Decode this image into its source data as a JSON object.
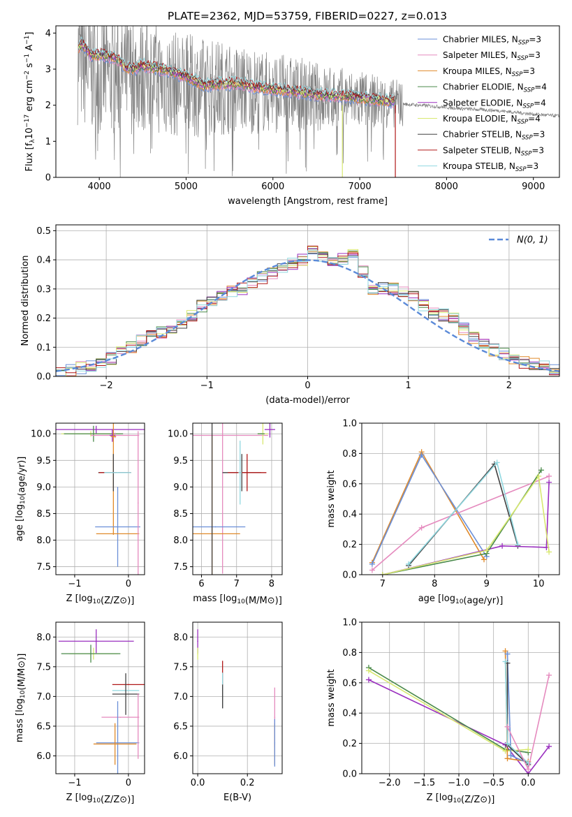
{
  "figure": {
    "title": "PLATE=2362, MJD=53759, FIBERID=0227, z=0.013"
  },
  "model_colors": {
    "Chabrier MILES": "#6a8fd8",
    "Salpeter MILES": "#e58abe",
    "Kroupa MILES": "#e08a2a",
    "Chabrier ELODIE": "#4a8a4a",
    "Salpeter ELODIE": "#9a2fbf",
    "Kroupa ELODIE": "#d8e870",
    "Chabrier STELIB": "#404040",
    "Salpeter STELIB": "#b01818",
    "Kroupa STELIB": "#90d8e0"
  },
  "chart_data": [
    {
      "id": "spectrum",
      "type": "line",
      "xlabel": "wavelength [Angstrom, rest frame]",
      "ylabel": "Flux [f_λ 10^-17 erg cm^-2 s^-1 A^-1]",
      "ylabel_parts": {
        "pre": "Flux [f",
        "sub1": "λ",
        "mid": "10",
        "sup1": "−17",
        "post1": " erg cm",
        "sup2": "−2",
        "post2": " s",
        "sup3": "−1",
        "post3": " A",
        "sup4": "−1",
        "end": "]"
      },
      "xlim": [
        3500,
        9300
      ],
      "ylim": [
        0,
        4.2
      ],
      "xticks": [
        4000,
        5000,
        6000,
        7000,
        8000,
        9000
      ],
      "yticks": [
        0,
        1,
        2,
        3,
        4
      ],
      "grid": false,
      "legend_position": "top-right",
      "legend": [
        {
          "name": "Chabrier MILES",
          "nssp": "3"
        },
        {
          "name": "Salpeter MILES",
          "nssp": "3"
        },
        {
          "name": "Kroupa MILES",
          "nssp": "3"
        },
        {
          "name": "Chabrier ELODIE",
          "nssp": "4"
        },
        {
          "name": "Salpeter ELODIE",
          "nssp": "4"
        },
        {
          "name": "Kroupa ELODIE",
          "nssp": "4"
        },
        {
          "name": "Chabrier STELIB",
          "nssp": "3"
        },
        {
          "name": "Salpeter STELIB",
          "nssp": "3"
        },
        {
          "name": "Kroupa STELIB",
          "nssp": "3"
        }
      ],
      "nssp_prefix": "N",
      "nssp_sub": "SSP",
      "data_color": "#808080",
      "data_envelope": [
        [
          3750,
          3.3
        ],
        [
          3900,
          3.0
        ],
        [
          4000,
          2.9
        ],
        [
          4200,
          2.8
        ],
        [
          4400,
          2.85
        ],
        [
          4600,
          2.8
        ],
        [
          4800,
          2.6
        ],
        [
          5000,
          2.55
        ],
        [
          5200,
          2.5
        ],
        [
          5400,
          2.5
        ],
        [
          5600,
          2.45
        ],
        [
          5800,
          2.4
        ],
        [
          6000,
          2.35
        ],
        [
          6300,
          2.3
        ],
        [
          6600,
          2.2
        ],
        [
          7000,
          2.15
        ],
        [
          7400,
          2.05
        ],
        [
          7800,
          1.98
        ],
        [
          8200,
          1.9
        ],
        [
          8600,
          1.85
        ],
        [
          9000,
          1.75
        ],
        [
          9300,
          1.7
        ]
      ],
      "models_median": [
        [
          3750,
          3.55
        ],
        [
          3800,
          3.7
        ],
        [
          3900,
          3.4
        ],
        [
          4000,
          3.4
        ],
        [
          4100,
          3.35
        ],
        [
          4200,
          3.3
        ],
        [
          4300,
          3.05
        ],
        [
          4400,
          3.0
        ],
        [
          4500,
          3.1
        ],
        [
          4600,
          3.05
        ],
        [
          4800,
          2.95
        ],
        [
          5000,
          2.8
        ],
        [
          5200,
          2.55
        ],
        [
          5400,
          2.6
        ],
        [
          5600,
          2.6
        ],
        [
          5800,
          2.5
        ],
        [
          6000,
          2.45
        ],
        [
          6200,
          2.4
        ],
        [
          6500,
          2.3
        ],
        [
          6800,
          2.25
        ],
        [
          7000,
          2.2
        ],
        [
          7200,
          2.15
        ],
        [
          7400,
          2.1
        ]
      ]
    },
    {
      "id": "residuals",
      "type": "histogram",
      "xlabel": "(data-model)/error",
      "ylabel": "Normed distribution",
      "xlim": [
        -2.5,
        2.5
      ],
      "ylim": [
        0,
        0.52
      ],
      "xticks": [
        -2,
        -1,
        0,
        1,
        2
      ],
      "yticks": [
        0.0,
        0.1,
        0.2,
        0.3,
        0.4,
        0.5
      ],
      "grid": true,
      "legend_position": "top-right",
      "reference_curve": {
        "label": "N(0, 1)",
        "color": "#5b8ad8",
        "style": "dashed",
        "mean": 0,
        "sigma": 1
      },
      "bin_width": 0.1,
      "histogram_envelope": [
        [
          -2.45,
          0.01
        ],
        [
          -2.25,
          0.03
        ],
        [
          -2.05,
          0.04
        ],
        [
          -1.85,
          0.08
        ],
        [
          -1.65,
          0.12
        ],
        [
          -1.45,
          0.15
        ],
        [
          -1.25,
          0.18
        ],
        [
          -1.05,
          0.24
        ],
        [
          -0.85,
          0.28
        ],
        [
          -0.65,
          0.3
        ],
        [
          -0.45,
          0.34
        ],
        [
          -0.25,
          0.37
        ],
        [
          -0.05,
          0.4
        ],
        [
          0.05,
          0.43
        ],
        [
          0.25,
          0.39
        ],
        [
          0.45,
          0.42
        ],
        [
          0.65,
          0.3
        ],
        [
          0.85,
          0.3
        ],
        [
          1.05,
          0.27
        ],
        [
          1.25,
          0.22
        ],
        [
          1.45,
          0.2
        ],
        [
          1.65,
          0.13
        ],
        [
          1.85,
          0.09
        ],
        [
          2.05,
          0.06
        ],
        [
          2.25,
          0.04
        ],
        [
          2.45,
          0.025
        ]
      ]
    },
    {
      "id": "age_vs_Z",
      "type": "errorbar",
      "xlabel": "Z [log10(Z/Z⊙)]",
      "ylabel": "age [log10(age/yr)]",
      "xlim": [
        -1.35,
        0.3
      ],
      "ylim": [
        7.35,
        10.2
      ],
      "xticks": [
        -1,
        0
      ],
      "yticks": [
        7.5,
        8.0,
        8.5,
        9.0,
        9.5,
        10.0
      ],
      "grid": true,
      "points": [
        {
          "model": "Salpeter ELODIE",
          "x": -0.6,
          "y": 10.08,
          "xerr": 0.9,
          "yerr": 0.07
        },
        {
          "model": "Kroupa ELODIE",
          "x": -0.7,
          "y": 10.0,
          "xerr": 0.55,
          "yerr": 0.05
        },
        {
          "model": "Chabrier ELODIE",
          "x": -0.65,
          "y": 10.0,
          "xerr": 0.55,
          "yerr": 0.15
        },
        {
          "model": "Salpeter MILES",
          "x": -0.25,
          "y": 9.97,
          "xerr": 0.45,
          "yerr": 0.05
        },
        {
          "model": "Salpeter ELODIE",
          "x": -0.3,
          "y": 9.97,
          "xerr": 0.05,
          "yerr": 0.12
        },
        {
          "model": "Kroupa MILES",
          "x": -0.28,
          "y": 9.95,
          "xerr": 0.05,
          "yerr": 1.85
        },
        {
          "model": "Chabrier STELIB",
          "x": -0.28,
          "y": 9.27,
          "xerr": 0.28,
          "yerr": 0.35
        },
        {
          "model": "Salpeter STELIB",
          "x": -0.25,
          "y": 9.27,
          "xerr": 0.3,
          "yerr": 0.0
        },
        {
          "model": "Kroupa STELIB",
          "x": -0.2,
          "y": 9.27,
          "xerr": 0.25,
          "yerr": 0.0
        },
        {
          "model": "Chabrier MILES",
          "x": -0.2,
          "y": 8.25,
          "xerr": 0.42,
          "yerr": 0.75
        },
        {
          "model": "Kroupa MILES",
          "x": -0.2,
          "y": 8.12,
          "xerr": 0.4,
          "yerr": 0.0
        },
        {
          "model": "Salpeter MILES",
          "x": 0.18,
          "y": 8.7,
          "xerr": 0.0,
          "yerr": 1.35
        }
      ]
    },
    {
      "id": "age_vs_mass",
      "type": "errorbar",
      "xlabel": "mass [log10(M/M⊙)]",
      "ylabel": "",
      "xlim": [
        5.75,
        8.3
      ],
      "ylim": [
        7.35,
        10.2
      ],
      "xticks": [
        6,
        7,
        8
      ],
      "yticks": [
        7.5,
        8.0,
        8.5,
        9.0,
        9.5,
        10.0
      ],
      "grid": true,
      "points": [
        {
          "model": "Salpeter MILES",
          "x": 6.6,
          "y": 9.97,
          "xerr": 1.3,
          "yerr": 2.6
        },
        {
          "model": "Kroupa MILES",
          "x": 6.3,
          "y": 8.12,
          "xerr": 0.8,
          "yerr": 1.85
        },
        {
          "model": "Chabrier MILES",
          "x": 6.4,
          "y": 8.25,
          "xerr": 0.85,
          "yerr": 0.0
        },
        {
          "model": "Chabrier STELIB",
          "x": 6.3,
          "y": 9.5,
          "xerr": 0.0,
          "yerr": 2.3
        },
        {
          "model": "Chabrier STELIB",
          "x": 7.15,
          "y": 9.27,
          "xerr": 0.55,
          "yerr": 0.35
        },
        {
          "model": "Salpeter STELIB",
          "x": 7.3,
          "y": 9.27,
          "xerr": 0.55,
          "yerr": 0.35
        },
        {
          "model": "Kroupa STELIB",
          "x": 7.1,
          "y": 9.27,
          "xerr": 0.05,
          "yerr": 0.6
        },
        {
          "model": "Kroupa ELODIE",
          "x": 7.75,
          "y": 10.0,
          "xerr": 0.15,
          "yerr": 0.2
        },
        {
          "model": "Chabrier ELODIE",
          "x": 7.7,
          "y": 10.0,
          "xerr": 0.1,
          "yerr": 0.0
        },
        {
          "model": "Salpeter ELODIE",
          "x": 7.95,
          "y": 10.08,
          "xerr": 0.15,
          "yerr": 0.15
        }
      ]
    },
    {
      "id": "massweight_vs_age",
      "type": "line",
      "xlabel": "age [log10(age/yr)]",
      "ylabel": "mass weight",
      "xlim": [
        6.6,
        10.4
      ],
      "ylim": [
        0,
        1.0
      ],
      "xticks": [
        7,
        8,
        9,
        10
      ],
      "yticks": [
        0.0,
        0.2,
        0.4,
        0.6,
        0.8,
        1.0
      ],
      "grid": true,
      "series": [
        {
          "model": "Kroupa MILES",
          "x": [
            6.8,
            7.75,
            8.95
          ],
          "y": [
            0.08,
            0.81,
            0.1
          ]
        },
        {
          "model": "Chabrier MILES",
          "x": [
            6.8,
            7.75,
            9.0
          ],
          "y": [
            0.07,
            0.79,
            0.12
          ]
        },
        {
          "model": "Salpeter MILES",
          "x": [
            6.8,
            7.75,
            10.2
          ],
          "y": [
            0.03,
            0.31,
            0.65
          ]
        },
        {
          "model": "Chabrier STELIB",
          "x": [
            7.5,
            9.15,
            9.6
          ],
          "y": [
            0.06,
            0.73,
            0.19
          ]
        },
        {
          "model": "Kroupa STELIB",
          "x": [
            7.5,
            9.2,
            9.6
          ],
          "y": [
            0.07,
            0.74,
            0.2
          ]
        },
        {
          "model": "Salpeter ELODIE",
          "x": [
            7.0,
            9.3,
            10.15,
            10.2
          ],
          "y": [
            0.0,
            0.19,
            0.18,
            0.61
          ]
        },
        {
          "model": "Chabrier ELODIE",
          "x": [
            7.0,
            9.0,
            10.05
          ],
          "y": [
            0.0,
            0.14,
            0.69
          ]
        },
        {
          "model": "Kroupa ELODIE",
          "x": [
            7.0,
            9.0,
            10.0,
            10.2
          ],
          "y": [
            0.0,
            0.16,
            0.65,
            0.15
          ]
        }
      ]
    },
    {
      "id": "mass_vs_Z",
      "type": "errorbar",
      "xlabel": "Z [log10(Z/Z⊙)]",
      "ylabel": "mass [log10(M/M⊙)]",
      "xlim": [
        -1.35,
        0.3
      ],
      "ylim": [
        5.7,
        8.25
      ],
      "xticks": [
        -1,
        0
      ],
      "yticks": [
        6.0,
        6.5,
        7.0,
        7.5,
        8.0
      ],
      "grid": true,
      "points": [
        {
          "model": "Salpeter ELODIE",
          "x": -0.6,
          "y": 7.93,
          "xerr": 0.7,
          "yerr": 0.2
        },
        {
          "model": "Kroupa ELODIE",
          "x": -0.65,
          "y": 7.72,
          "xerr": 0.45,
          "yerr": 0.1
        },
        {
          "model": "Chabrier ELODIE",
          "x": -0.7,
          "y": 7.72,
          "xerr": 0.55,
          "yerr": 0.15
        },
        {
          "model": "Salpeter STELIB",
          "x": 0.0,
          "y": 7.2,
          "xerr": 0.3,
          "yerr": 0.0
        },
        {
          "model": "Kroupa STELIB",
          "x": -0.05,
          "y": 7.1,
          "xerr": 0.25,
          "yerr": 0.0
        },
        {
          "model": "Chabrier STELIB",
          "x": -0.05,
          "y": 7.04,
          "xerr": 0.25,
          "yerr": 0.35
        },
        {
          "model": "Salpeter MILES",
          "x": -0.15,
          "y": 6.65,
          "xerr": 0.35,
          "yerr": 0.0
        },
        {
          "model": "Chabrier MILES",
          "x": -0.2,
          "y": 6.22,
          "xerr": 0.4,
          "yerr": 0.7
        },
        {
          "model": "Kroupa MILES",
          "x": -0.25,
          "y": 6.2,
          "xerr": 0.4,
          "yerr": 0.35
        },
        {
          "model": "Salpeter MILES",
          "x": 0.18,
          "y": 6.5,
          "xerr": 0.0,
          "yerr": 0.55
        }
      ]
    },
    {
      "id": "mass_vs_EBV",
      "type": "errorbar",
      "xlabel": "E(B-V)",
      "ylabel": "",
      "xlim": [
        -0.02,
        0.34
      ],
      "ylim": [
        5.7,
        8.25
      ],
      "xticks": [
        0.0,
        0.2
      ],
      "yticks": [
        6.0,
        6.5,
        7.0,
        7.5,
        8.0
      ],
      "grid": true,
      "points": [
        {
          "model": "Salpeter ELODIE",
          "x": 0.0,
          "y": 7.93,
          "xerr": 0.0,
          "yerr": 0.2
        },
        {
          "model": "Kroupa ELODIE",
          "x": 0.0,
          "y": 7.72,
          "xerr": 0.0,
          "yerr": 0.1
        },
        {
          "model": "Salpeter STELIB",
          "x": 0.1,
          "y": 7.2,
          "xerr": 0.0,
          "yerr": 0.4
        },
        {
          "model": "Kroupa STELIB",
          "x": 0.1,
          "y": 7.1,
          "xerr": 0.0,
          "yerr": 0.3
        },
        {
          "model": "Chabrier STELIB",
          "x": 0.1,
          "y": 7.0,
          "xerr": 0.0,
          "yerr": 0.2
        },
        {
          "model": "Salpeter MILES",
          "x": 0.31,
          "y": 6.65,
          "xerr": 0.0,
          "yerr": 0.5
        },
        {
          "model": "Kroupa MILES",
          "x": 0.31,
          "y": 6.2,
          "xerr": 0.0,
          "yerr": 0.35
        },
        {
          "model": "Chabrier MILES",
          "x": 0.31,
          "y": 6.22,
          "xerr": 0.0,
          "yerr": 0.4
        }
      ]
    },
    {
      "id": "massweight_vs_Z",
      "type": "line",
      "xlabel": "Z [log10(Z/Z⊙)]",
      "ylabel": "mass weight",
      "xlim": [
        -2.4,
        0.45
      ],
      "ylim": [
        0,
        1.0
      ],
      "xticks": [
        -2.0,
        -1.5,
        -1.0,
        -0.5,
        0.0
      ],
      "yticks": [
        0.0,
        0.2,
        0.4,
        0.6,
        0.8,
        1.0
      ],
      "grid": true,
      "series": [
        {
          "model": "Salpeter ELODIE",
          "x": [
            -2.3,
            -0.33,
            0.0,
            0.3
          ],
          "y": [
            0.62,
            0.19,
            0.0,
            0.18
          ]
        },
        {
          "model": "Chabrier ELODIE",
          "x": [
            -2.3,
            -0.33,
            0.0
          ],
          "y": [
            0.7,
            0.16,
            0.14
          ]
        },
        {
          "model": "Kroupa ELODIE",
          "x": [
            -2.3,
            -0.33,
            0.0
          ],
          "y": [
            0.68,
            0.15,
            0.16
          ]
        },
        {
          "model": "Kroupa MILES",
          "x": [
            -0.33,
            -0.3,
            0.0
          ],
          "y": [
            0.81,
            0.1,
            0.08
          ]
        },
        {
          "model": "Chabrier MILES",
          "x": [
            -0.3,
            -0.25,
            0.0
          ],
          "y": [
            0.79,
            0.12,
            0.07
          ]
        },
        {
          "model": "Chabrier STELIB",
          "x": [
            -0.3,
            -0.3,
            0.0
          ],
          "y": [
            0.73,
            0.19,
            0.06
          ]
        },
        {
          "model": "Kroupa STELIB",
          "x": [
            -0.33,
            -0.3,
            0.0
          ],
          "y": [
            0.74,
            0.2,
            0.07
          ]
        },
        {
          "model": "Salpeter MILES",
          "x": [
            -0.3,
            0.0,
            0.3
          ],
          "y": [
            0.31,
            0.03,
            0.65
          ]
        }
      ]
    }
  ]
}
